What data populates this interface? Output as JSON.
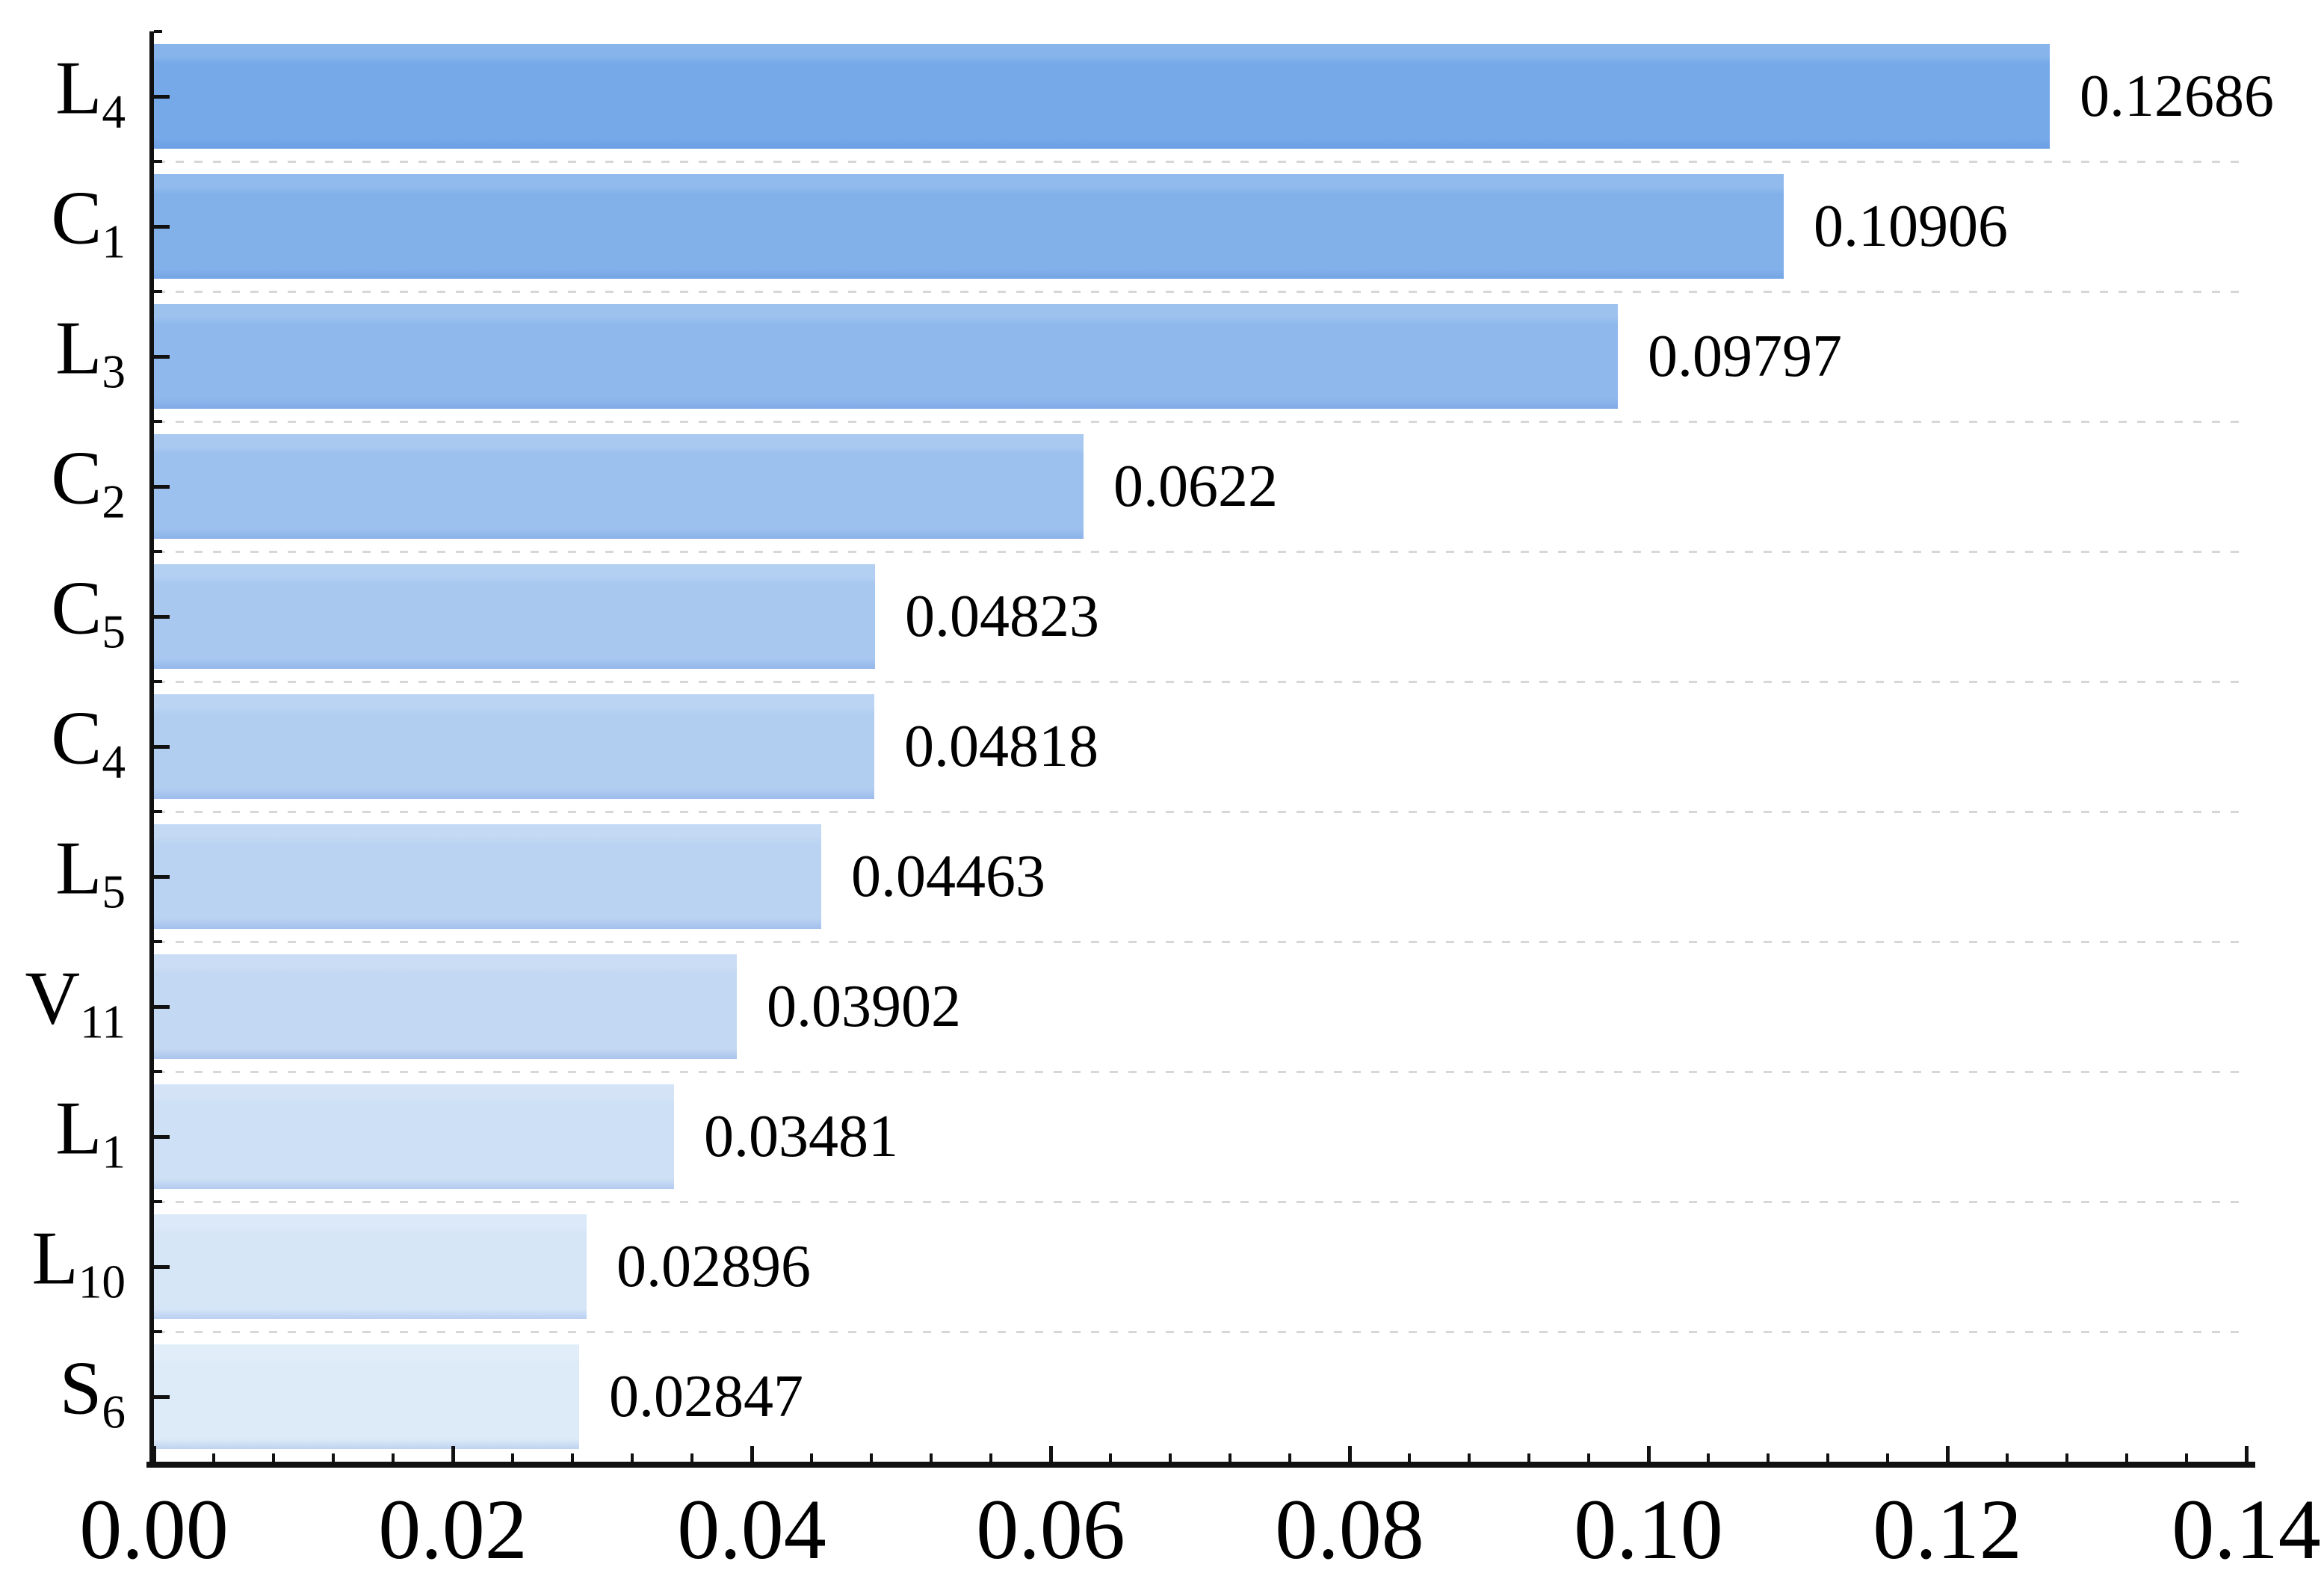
{
  "chart_data": {
    "type": "bar",
    "orientation": "horizontal",
    "title": "",
    "xlabel": "",
    "ylabel": "",
    "xlim": [
      0,
      0.14
    ],
    "x_major_tick_step": 0.02,
    "x_minor_tick_step": 0.004,
    "x_tick_labels": [
      "0.00",
      "0.02",
      "0.04",
      "0.06",
      "0.08",
      "0.10",
      "0.12",
      "0.14"
    ],
    "grid": {
      "style": "dashed",
      "axis": "y",
      "position": "between-rows",
      "color": "#d7d7d7"
    },
    "legend": null,
    "categories": [
      {
        "base": "L",
        "sub": "4"
      },
      {
        "base": "C",
        "sub": "1"
      },
      {
        "base": "L",
        "sub": "3"
      },
      {
        "base": "C",
        "sub": "2"
      },
      {
        "base": "C",
        "sub": "5"
      },
      {
        "base": "C",
        "sub": "4"
      },
      {
        "base": "L",
        "sub": "5"
      },
      {
        "base": "V",
        "sub": "11"
      },
      {
        "base": "L",
        "sub": "1"
      },
      {
        "base": "L",
        "sub": "10"
      },
      {
        "base": "S",
        "sub": "6"
      }
    ],
    "values": [
      0.12686,
      0.10906,
      0.09797,
      0.0622,
      0.04823,
      0.04818,
      0.04463,
      0.03902,
      0.03481,
      0.02896,
      0.02847
    ],
    "value_labels": [
      "0.12686",
      "0.10906",
      "0.09797",
      "0.0622",
      "0.04823",
      "0.04818",
      "0.04463",
      "0.03902",
      "0.03481",
      "0.02896",
      "0.02847"
    ],
    "bar_colors": [
      "#75A9E8",
      "#82B1EA",
      "#8FB9EC",
      "#9CC1EE",
      "#A8C8F0",
      "#B1CEF1",
      "#BAD3F2",
      "#C3D8F3",
      "#CDE0F5",
      "#D6E6F7",
      "#DDEBF8"
    ],
    "axis_color": "#111111",
    "text_color": "#000000",
    "background_color": "#ffffff"
  }
}
